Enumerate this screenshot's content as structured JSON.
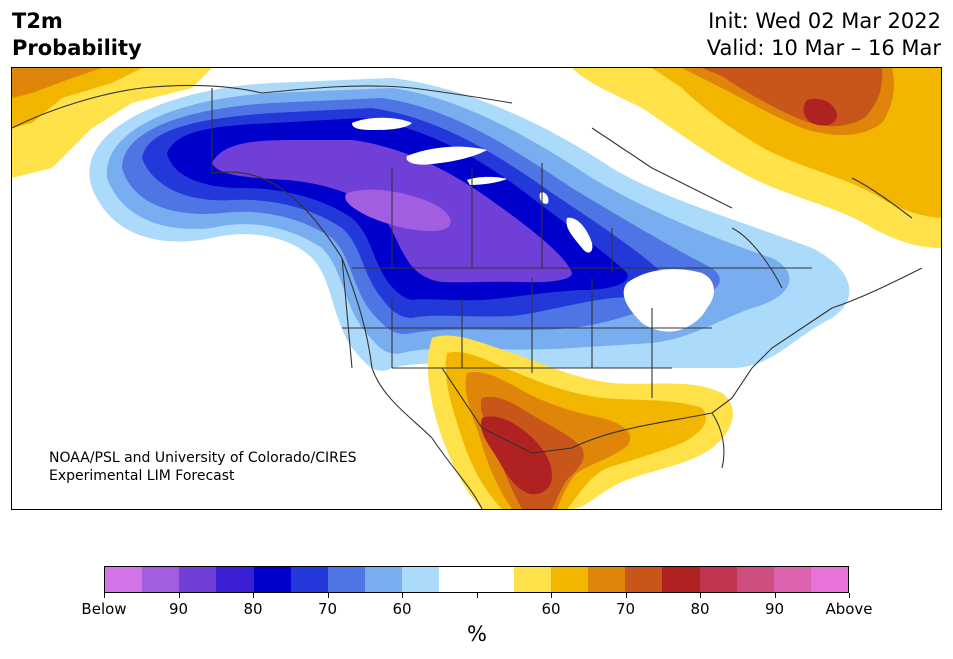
{
  "header": {
    "title_line1": "T2m",
    "title_line2": "Probability",
    "init": "Init: Wed 02 Mar 2022",
    "valid": "Valid: 10 Mar – 16 Mar"
  },
  "credit": {
    "line1": "NOAA/PSL and University of Colorado/CIRES",
    "line2": "Experimental LIM Forecast"
  },
  "colorbar": {
    "colors": [
      "#d375e8",
      "#a35de0",
      "#6f3fd8",
      "#3b1fd5",
      "#0000cc",
      "#2338d8",
      "#4f74e4",
      "#78aeef",
      "#acdafb",
      "#ffffff",
      "#ffffff",
      "#ffe14a",
      "#f3b600",
      "#de850a",
      "#c8561a",
      "#b02222",
      "#c03550",
      "#cf4e80",
      "#dd62ad",
      "#e972d9"
    ],
    "tick_labels": [
      "Below",
      "90",
      "80",
      "70",
      "60",
      "",
      "60",
      "70",
      "80",
      "90",
      "Above"
    ],
    "unit": "%"
  },
  "map": {
    "colors": {
      "below_90": "#a35de0",
      "below_80": "#6f3fd8",
      "below_75": "#3b1fd5",
      "below_70": "#0000cc",
      "below_65": "#2338d8",
      "below_60": "#4f74e4",
      "below_55": "#78aeef",
      "below_50": "#acdafb",
      "above_55": "#ffe14a",
      "above_60": "#f3b600",
      "above_65": "#de850a",
      "above_70": "#c8561a",
      "above_75": "#b02222",
      "lakes": "#ffffff",
      "borders": "#333333"
    }
  }
}
